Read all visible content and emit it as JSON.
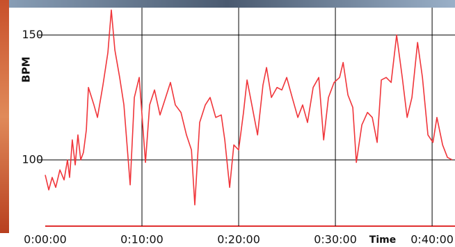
{
  "chart_data": {
    "type": "line",
    "y_label": "BPM",
    "x_label": "Time",
    "xlim": [
      0,
      2542
    ],
    "ylim": [
      73.5,
      164
    ],
    "xticks": [
      {
        "value": 0,
        "label": "0:00:00"
      },
      {
        "value": 600,
        "label": "0:10:00"
      },
      {
        "value": 1200,
        "label": "0:20:00"
      },
      {
        "value": 1800,
        "label": "0:30:00"
      },
      {
        "value": 2400,
        "label": "0:40:00"
      }
    ],
    "yticks": [
      100,
      150
    ],
    "grid": true,
    "series": [
      {
        "color": "#f0353a",
        "x": [
          0,
          22,
          43,
          65,
          91,
          117,
          138,
          151,
          168,
          186,
          203,
          220,
          237,
          255,
          268,
          302,
          324,
          358,
          389,
          410,
          432,
          462,
          488,
          527,
          553,
          583,
          622,
          648,
          678,
          712,
          747,
          777,
          807,
          842,
          876,
          907,
          928,
          958,
          993,
          1023,
          1058,
          1092,
          1114,
          1144,
          1170,
          1200,
          1230,
          1252,
          1282,
          1317,
          1351,
          1373,
          1403,
          1438,
          1468,
          1498,
          1532,
          1567,
          1597,
          1627,
          1662,
          1697,
          1727,
          1757,
          1792,
          1826,
          1848,
          1878,
          1908,
          1930,
          1964,
          1999,
          2029,
          2059,
          2085,
          2115,
          2146,
          2180,
          2215,
          2245,
          2275,
          2310,
          2340,
          2374,
          2405,
          2430,
          2465,
          2495,
          2525
        ],
        "values": [
          94,
          88,
          93,
          89,
          96,
          92,
          100,
          93,
          108,
          98,
          110,
          100,
          103,
          112,
          129,
          122,
          117,
          130,
          143,
          160,
          144,
          133,
          122,
          90,
          125,
          133,
          99,
          122,
          128,
          118,
          125,
          131,
          122,
          119,
          110,
          104,
          82,
          115,
          122,
          125,
          117,
          118,
          108,
          89,
          106,
          104,
          119,
          132,
          122,
          110,
          130,
          137,
          125,
          129,
          128,
          133,
          125,
          117,
          122,
          115,
          129,
          133,
          108,
          125,
          131,
          133,
          139,
          126,
          121,
          99,
          114,
          119,
          117,
          107,
          132,
          133,
          131,
          150,
          133,
          117,
          125,
          147,
          133,
          110,
          107,
          117,
          106,
          101,
          100
        ]
      }
    ]
  }
}
